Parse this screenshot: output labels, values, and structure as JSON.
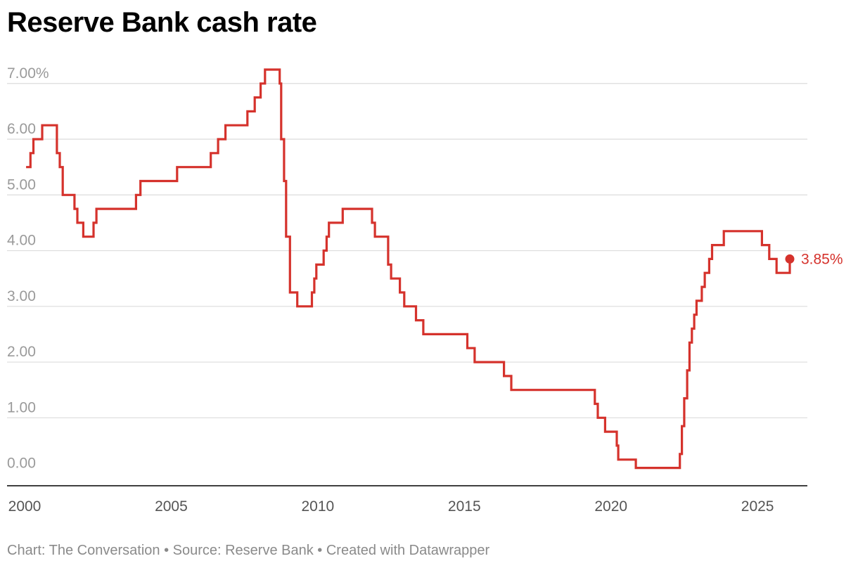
{
  "title": "Reserve Bank cash rate",
  "footer": "Chart: The Conversation • Source: Reserve Bank • Created with Datawrapper",
  "colors": {
    "line": "#d5322c",
    "grid": "#dcdcdc",
    "axis": "#000000"
  },
  "chart_data": {
    "type": "line",
    "title": "Reserve Bank cash rate",
    "xlabel": "",
    "ylabel": "",
    "xlim": [
      1999.4,
      2026.7
    ],
    "ylim": [
      -0.22,
      7.3
    ],
    "grid": true,
    "y_ticks": [
      0,
      1,
      2,
      3,
      4,
      5,
      6,
      7
    ],
    "y_tick_labels": [
      "0.00",
      "1.00",
      "2.00",
      "3.00",
      "4.00",
      "5.00",
      "6.00",
      "7.00%"
    ],
    "x_ticks": [
      2000,
      2005,
      2010,
      2015,
      2020,
      2025
    ],
    "x_tick_labels": [
      "2000",
      "2005",
      "2010",
      "2015",
      "2020",
      "2025"
    ],
    "end_label": "3.85%",
    "step": true,
    "series": [
      {
        "values": [
          [
            2000.05,
            5.5
          ],
          [
            2000.2,
            5.75
          ],
          [
            2000.3,
            6.0
          ],
          [
            2000.6,
            6.25
          ],
          [
            2001.1,
            5.75
          ],
          [
            2001.2,
            5.5
          ],
          [
            2001.3,
            5.0
          ],
          [
            2001.7,
            4.75
          ],
          [
            2001.8,
            4.5
          ],
          [
            2002.0,
            4.25
          ],
          [
            2002.35,
            4.5
          ],
          [
            2002.45,
            4.75
          ],
          [
            2003.8,
            5.0
          ],
          [
            2003.95,
            5.25
          ],
          [
            2005.2,
            5.5
          ],
          [
            2006.35,
            5.75
          ],
          [
            2006.6,
            6.0
          ],
          [
            2006.85,
            6.25
          ],
          [
            2007.6,
            6.5
          ],
          [
            2007.85,
            6.75
          ],
          [
            2008.05,
            7.0
          ],
          [
            2008.2,
            7.25
          ],
          [
            2008.7,
            7.0
          ],
          [
            2008.75,
            6.0
          ],
          [
            2008.85,
            5.25
          ],
          [
            2008.92,
            4.25
          ],
          [
            2009.05,
            3.25
          ],
          [
            2009.3,
            3.0
          ],
          [
            2009.8,
            3.25
          ],
          [
            2009.88,
            3.5
          ],
          [
            2009.95,
            3.75
          ],
          [
            2010.2,
            4.0
          ],
          [
            2010.3,
            4.25
          ],
          [
            2010.38,
            4.5
          ],
          [
            2010.85,
            4.75
          ],
          [
            2011.85,
            4.5
          ],
          [
            2011.95,
            4.25
          ],
          [
            2012.4,
            3.75
          ],
          [
            2012.5,
            3.5
          ],
          [
            2012.8,
            3.25
          ],
          [
            2012.95,
            3.0
          ],
          [
            2013.35,
            2.75
          ],
          [
            2013.6,
            2.5
          ],
          [
            2015.1,
            2.25
          ],
          [
            2015.35,
            2.0
          ],
          [
            2016.35,
            1.75
          ],
          [
            2016.6,
            1.5
          ],
          [
            2019.45,
            1.25
          ],
          [
            2019.55,
            1.0
          ],
          [
            2019.8,
            0.75
          ],
          [
            2020.2,
            0.5
          ],
          [
            2020.25,
            0.25
          ],
          [
            2020.85,
            0.1
          ],
          [
            2022.35,
            0.35
          ],
          [
            2022.42,
            0.85
          ],
          [
            2022.5,
            1.35
          ],
          [
            2022.6,
            1.85
          ],
          [
            2022.68,
            2.35
          ],
          [
            2022.76,
            2.6
          ],
          [
            2022.84,
            2.85
          ],
          [
            2022.92,
            3.1
          ],
          [
            2023.1,
            3.35
          ],
          [
            2023.2,
            3.6
          ],
          [
            2023.35,
            3.85
          ],
          [
            2023.45,
            4.1
          ],
          [
            2023.85,
            4.35
          ],
          [
            2025.15,
            4.1
          ],
          [
            2025.4,
            3.85
          ],
          [
            2025.65,
            3.6
          ],
          [
            2026.1,
            3.85
          ]
        ]
      }
    ]
  }
}
